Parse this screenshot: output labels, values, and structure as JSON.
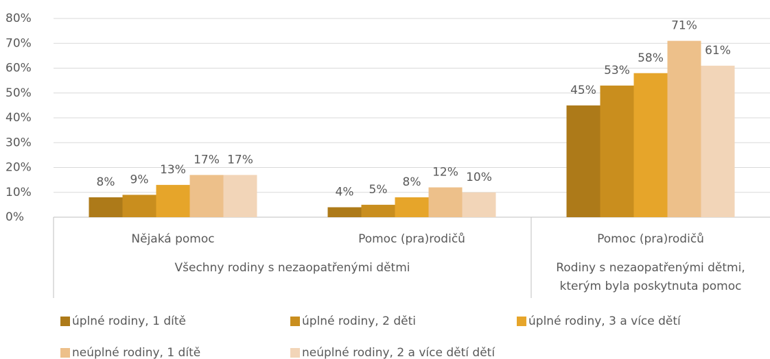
{
  "chart_data": {
    "type": "bar",
    "categories": [
      "Nějaká pomoc",
      "Pomoc (pra)rodičů",
      "Pomoc (pra)rodičů"
    ],
    "groups": [
      {
        "label_lines": [
          "Všechny rodiny s nezaopatřenými dětmi"
        ],
        "span": 2
      },
      {
        "label_lines": [
          "Rodiny s nezaopatřenými dětmi,",
          "kterým byla poskytnuta pomoc"
        ],
        "span": 1
      }
    ],
    "series": [
      {
        "name": "úplné rodiny, 1 dítě",
        "color": "#ad7a19",
        "values": [
          8,
          4,
          45
        ],
        "value_labels": [
          "8%",
          "4%",
          "45%"
        ]
      },
      {
        "name": "úplné rodiny, 2 děti",
        "color": "#c98e1e",
        "values": [
          9,
          5,
          53
        ],
        "value_labels": [
          "9%",
          "5%",
          "53%"
        ]
      },
      {
        "name": "úplné rodiny, 3 a více dětí",
        "color": "#e6a52a",
        "values": [
          13,
          8,
          58
        ],
        "value_labels": [
          "13%",
          "8%",
          "58%"
        ]
      },
      {
        "name": "neúplné rodiny, 1 dítě",
        "color": "#edc08a",
        "values": [
          17,
          12,
          71
        ],
        "value_labels": [
          "17%",
          "12%",
          "71%"
        ]
      },
      {
        "name": "neúplné rodiny, 2 a více dětí dětí",
        "color": "#f2d5b8",
        "values": [
          17,
          10,
          61
        ],
        "value_labels": [
          "17%",
          "10%",
          "61%"
        ]
      }
    ],
    "ylim": [
      0,
      80
    ],
    "yticks": [
      {
        "value": 0,
        "label": "0%"
      },
      {
        "value": 10,
        "label": "10%"
      },
      {
        "value": 20,
        "label": "20%"
      },
      {
        "value": 30,
        "label": "30%"
      },
      {
        "value": 40,
        "label": "40%"
      },
      {
        "value": 50,
        "label": "50%"
      },
      {
        "value": 60,
        "label": "60%"
      },
      {
        "value": 70,
        "label": "70%"
      },
      {
        "value": 80,
        "label": "80%"
      }
    ],
    "grid": true,
    "legend": "bottom"
  }
}
